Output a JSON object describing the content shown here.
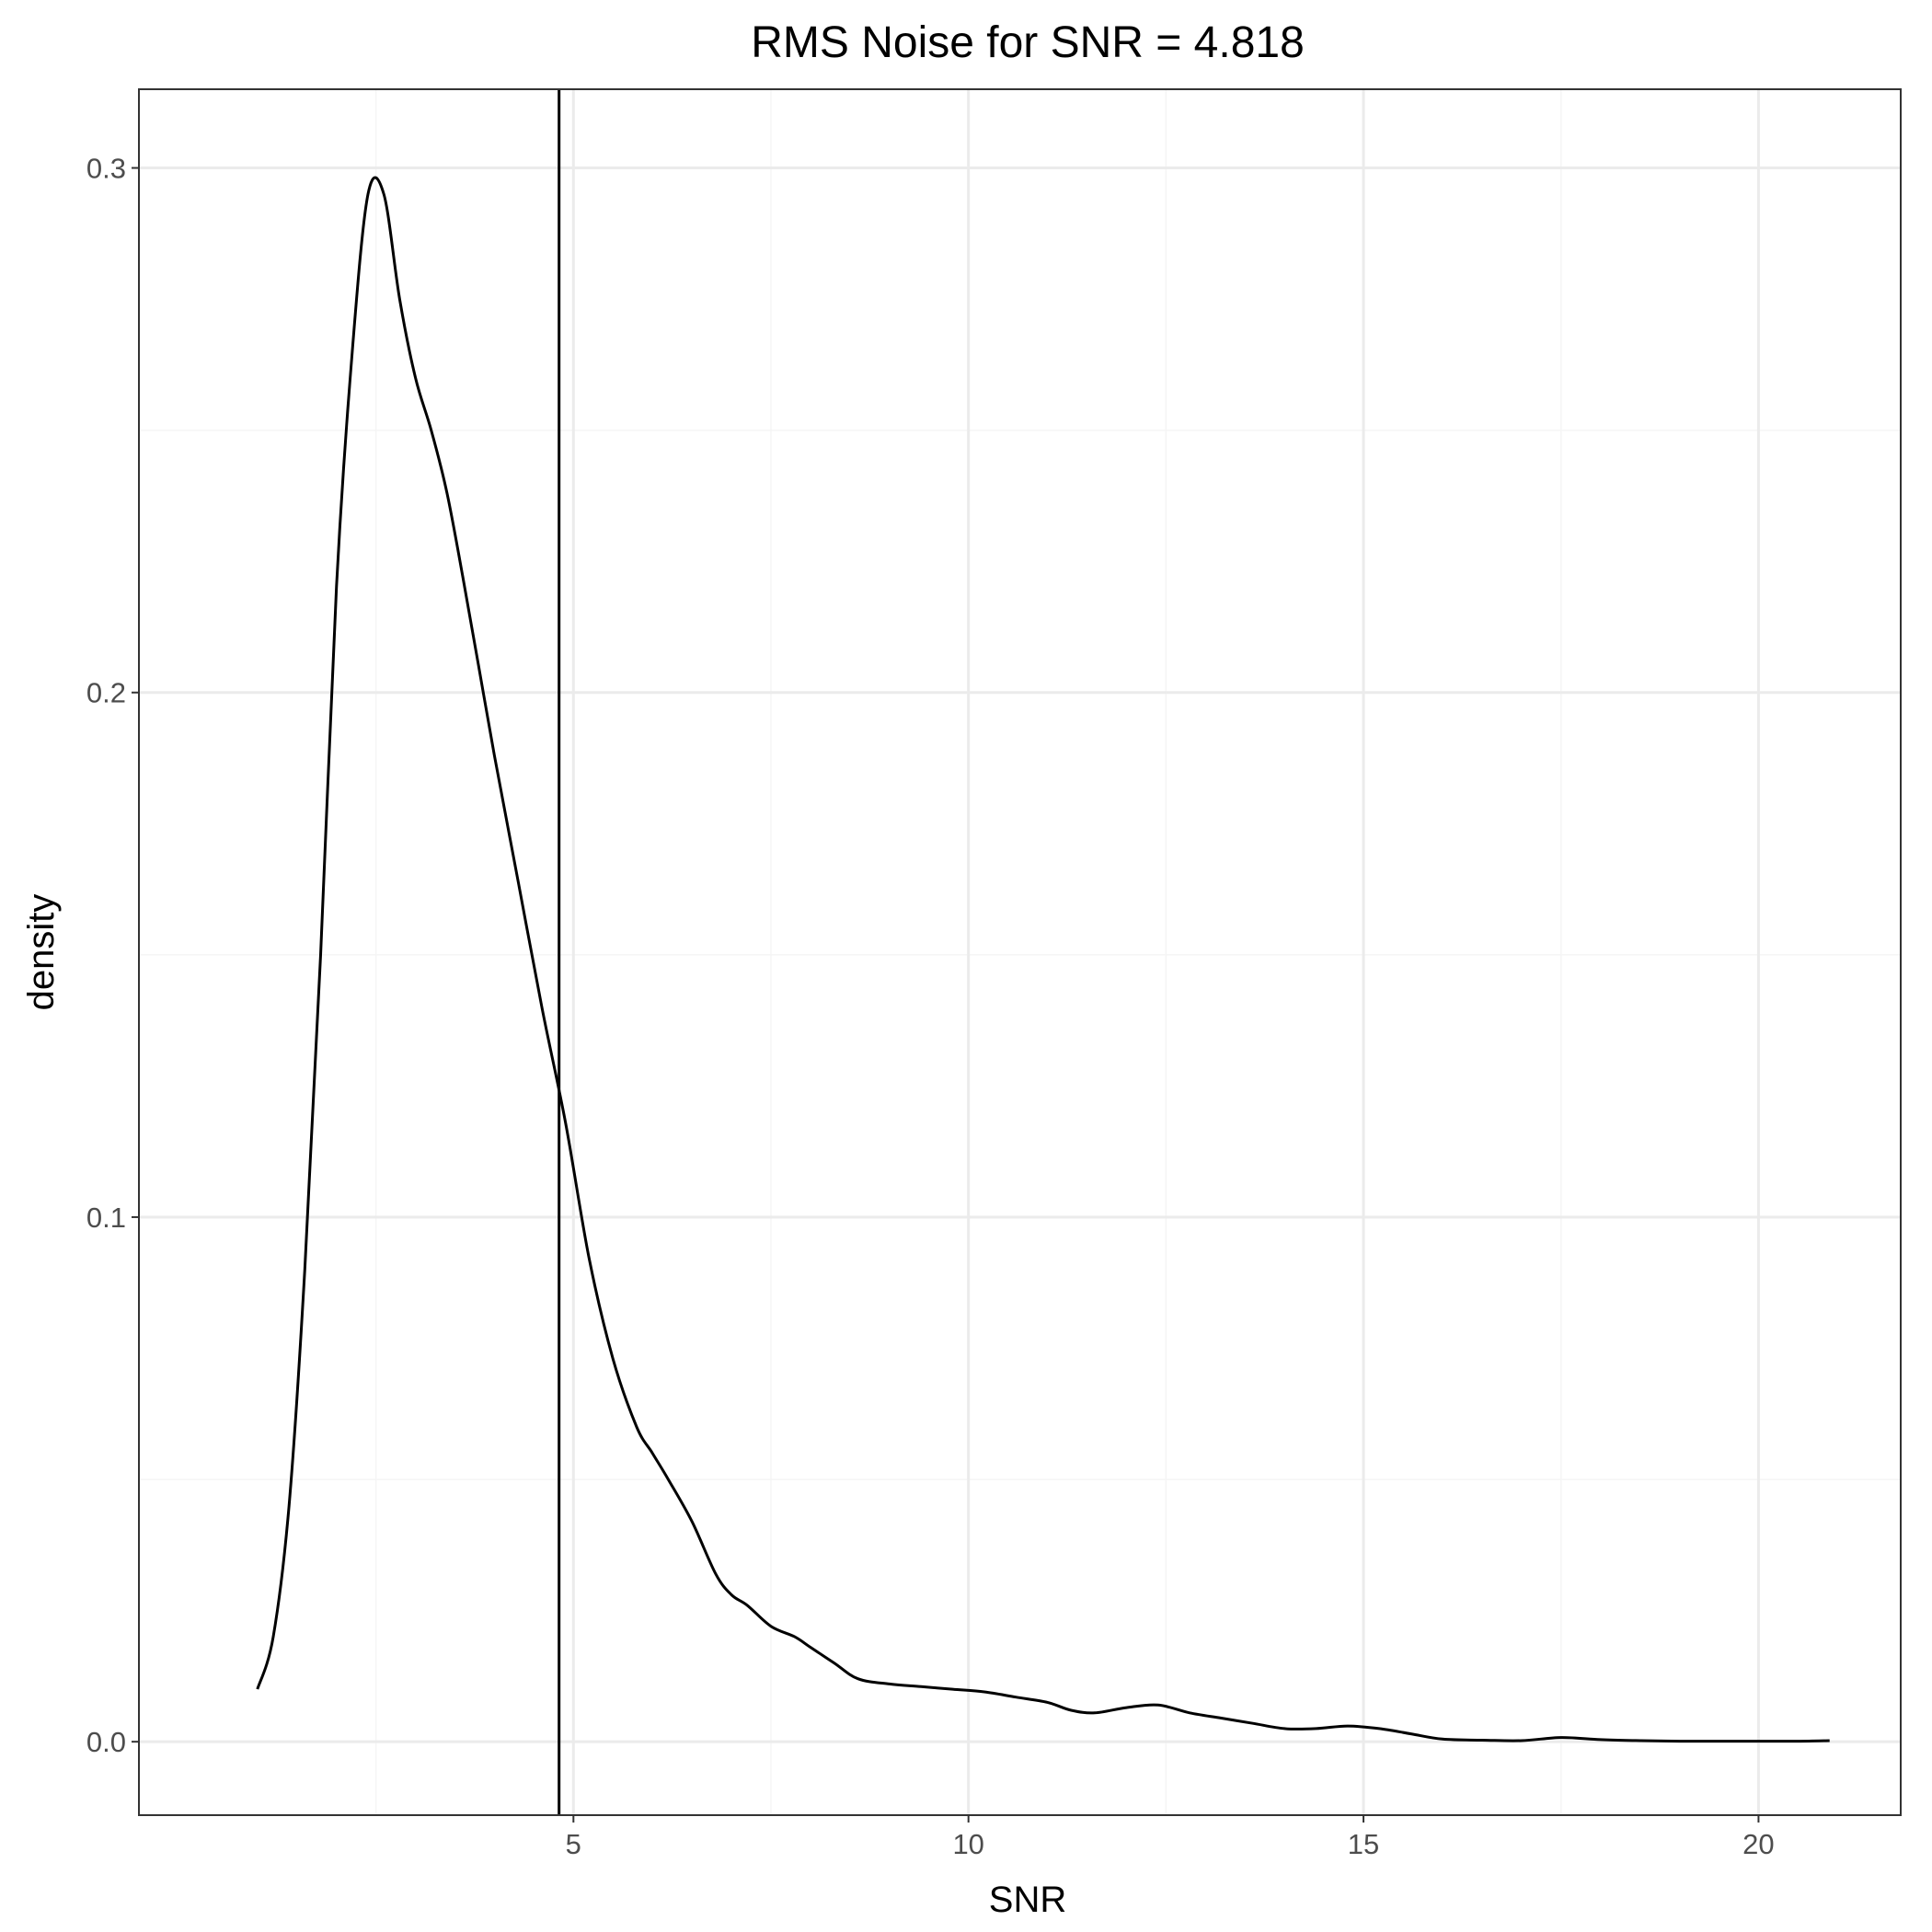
{
  "chart_data": {
    "type": "line",
    "title": "RMS Noise for SNR =  4.818",
    "xlabel": "SNR",
    "ylabel": "density",
    "xlim": [
      -0.5,
      21.8
    ],
    "ylim": [
      -0.014,
      0.315
    ],
    "x_ticks": [
      5,
      10,
      15,
      20
    ],
    "x_tick_labels": [
      "5",
      "10",
      "15",
      "20"
    ],
    "x_minor_ticks": [
      2.5,
      7.5,
      12.5,
      17.5
    ],
    "y_ticks": [
      0.0,
      0.1,
      0.2,
      0.3
    ],
    "y_tick_labels": [
      "0.0",
      "0.1",
      "0.2",
      "0.3"
    ],
    "y_minor_ticks": [
      0.05,
      0.15,
      0.25
    ],
    "grid": true,
    "vline": {
      "x": 4.818,
      "color": "#000000"
    },
    "series": [
      {
        "color": "#000000",
        "x": [
          1.0,
          1.2,
          1.4,
          1.6,
          1.8,
          2.0,
          2.2,
          2.4,
          2.6,
          2.8,
          3.0,
          3.2,
          3.4,
          3.6,
          3.8,
          4.0,
          4.3,
          4.6,
          4.9,
          5.2,
          5.5,
          5.8,
          6.0,
          6.2,
          6.5,
          6.8,
          7.0,
          7.2,
          7.5,
          7.8,
          8.0,
          8.3,
          8.6,
          9.0,
          9.4,
          9.8,
          10.2,
          10.6,
          11.0,
          11.3,
          11.6,
          12.0,
          12.4,
          12.8,
          13.2,
          13.6,
          14.0,
          14.4,
          14.8,
          15.2,
          15.6,
          16.0,
          16.5,
          17.0,
          17.5,
          18.0,
          18.5,
          19.0,
          19.5,
          20.0,
          20.5,
          20.9
        ],
        "y": [
          0.01,
          0.02,
          0.045,
          0.09,
          0.15,
          0.22,
          0.265,
          0.295,
          0.295,
          0.275,
          0.26,
          0.25,
          0.238,
          0.222,
          0.205,
          0.188,
          0.164,
          0.14,
          0.118,
          0.092,
          0.073,
          0.06,
          0.055,
          0.05,
          0.042,
          0.032,
          0.028,
          0.026,
          0.022,
          0.02,
          0.018,
          0.015,
          0.012,
          0.011,
          0.0105,
          0.01,
          0.0095,
          0.0085,
          0.0075,
          0.006,
          0.0055,
          0.0065,
          0.007,
          0.0055,
          0.0045,
          0.0035,
          0.0025,
          0.0025,
          0.003,
          0.0025,
          0.0015,
          0.0005,
          0.0003,
          0.0002,
          0.0008,
          0.0004,
          0.0002,
          0.0001,
          0.0001,
          0.0001,
          0.0001,
          0.0002
        ]
      }
    ]
  },
  "colors": {
    "panel_border": "#333333",
    "grid_major": "#ebebeb",
    "grid_minor": "#f5f5f5",
    "tick_label": "#4d4d4d",
    "line": "#000000"
  }
}
